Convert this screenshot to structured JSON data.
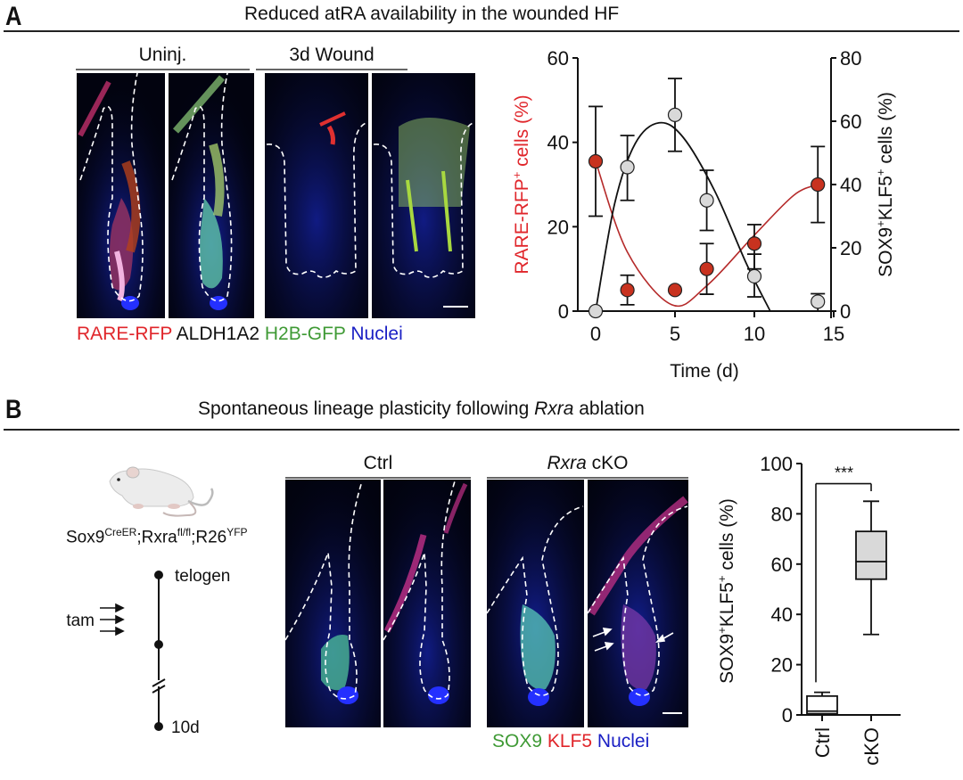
{
  "panel_a": {
    "letter": "A",
    "title": "Reduced atRA availability in the wounded HF",
    "image_groups": [
      {
        "label": "Uninj."
      },
      {
        "label": "3d Wound"
      }
    ],
    "stain_legend": [
      {
        "text": "RARE-RFP",
        "color": "#e0262b"
      },
      {
        "text": "ALDH1A2",
        "color": "#111111"
      },
      {
        "text": "H2B-GFP",
        "color": "#3f9a35"
      },
      {
        "text": "Nuclei",
        "color": "#1a1fc4"
      }
    ]
  },
  "panel_b": {
    "letter": "B",
    "title_prefix": "Spontaneous lineage plasticity following ",
    "title_italic": "Rxra",
    "title_suffix": " ablation",
    "genotype": {
      "base1": "Sox9",
      "sup1": "CreER",
      "sep1": ";Rxra",
      "sup2": "fl/fl",
      "sep2": ";R26",
      "sup3": "YFP"
    },
    "timeline": {
      "start_label": "telogen",
      "treatment_label": "tam",
      "end_label": "10d"
    },
    "image_groups": [
      {
        "label": "Ctrl",
        "italic": "",
        "rest": "Ctrl"
      },
      {
        "label": "Rxra cKO",
        "italic": "Rxra",
        "rest": " cKO"
      }
    ],
    "stain_legend": [
      {
        "text": "SOX9",
        "color": "#3f9a35"
      },
      {
        "text": "KLF5",
        "color": "#e0262b"
      },
      {
        "text": "Nuclei",
        "color": "#1a1fc4"
      }
    ]
  },
  "colors": {
    "red_series": "#c8321f",
    "red_axis": "#e0262b",
    "gray_series": "#d9d9d9",
    "box_fill_ko": "#d9d9d9",
    "axis": "#111111"
  },
  "chart_data": [
    {
      "type": "scatter",
      "title": "Reduced atRA availability in the wounded HF",
      "xlabel": "Time (d)",
      "ylabel_left": "RARE-RFP+ cells (%)",
      "ylabel_left_parts": {
        "pre": "RARE-RFP",
        "sup": "+",
        "post": " cells (%)"
      },
      "ylabel_right": "SOX9+KLF5+ cells (%)",
      "ylabel_right_parts": {
        "pre1": "SOX9",
        "sup1": "+",
        "pre2": "KLF5",
        "sup2": "+",
        "post": " cells (%)"
      },
      "xlim": [
        0,
        15
      ],
      "ylim_left": [
        0,
        60
      ],
      "ylim_right": [
        0,
        80
      ],
      "x_ticks": [
        "0",
        "5",
        "10",
        "15"
      ],
      "y_ticks_left": [
        "0",
        "20",
        "40",
        "60"
      ],
      "y_ticks_right": [
        "0",
        "20",
        "40",
        "60",
        "80"
      ],
      "grid": false,
      "series": [
        {
          "name": "RARE-RFP+ cells (%)",
          "axis": "left",
          "color": "#c8321f",
          "x": [
            0,
            2,
            5,
            7,
            10,
            14
          ],
          "y": [
            35.5,
            5,
            5,
            10,
            16,
            30
          ],
          "err_low": [
            22.5,
            1.5,
            5,
            4,
            10,
            21
          ],
          "err_high": [
            48.5,
            8.5,
            5,
            16,
            20.5,
            39
          ],
          "fit_curve_color": "#b52a2a"
        },
        {
          "name": "SOX9+KLF5+ cells (%)",
          "axis": "right",
          "color": "#d9d9d9",
          "x": [
            0,
            2,
            5,
            7,
            10,
            14
          ],
          "y": [
            0,
            45.5,
            62,
            35,
            11,
            3
          ],
          "err_low": [
            0,
            35,
            50.5,
            25.5,
            4.5,
            0
          ],
          "err_high": [
            0,
            55.5,
            73.5,
            44.5,
            18,
            5.5
          ],
          "fit_curve_color": "#111111"
        }
      ]
    },
    {
      "type": "box",
      "categories": [
        "Ctrl",
        "cKO"
      ],
      "ylabel": "SOX9+KLF5+ cells (%)",
      "ylabel_parts": {
        "pre1": "SOX9",
        "sup1": "+",
        "pre2": "KLF5",
        "sup2": "+",
        "post": " cells (%)"
      },
      "ylim": [
        0,
        100
      ],
      "y_ticks": [
        "0",
        "20",
        "40",
        "60",
        "80",
        "100"
      ],
      "boxes": [
        {
          "name": "Ctrl",
          "min": 0,
          "q1": 0.5,
          "median": 1.5,
          "q3": 7.5,
          "max": 9,
          "fill": "#ffffff"
        },
        {
          "name": "cKO",
          "min": 32,
          "q1": 54,
          "median": 61,
          "q3": 73,
          "max": 85,
          "fill": "#d9d9d9"
        }
      ],
      "significance": {
        "label": "***",
        "level": 92
      }
    }
  ]
}
